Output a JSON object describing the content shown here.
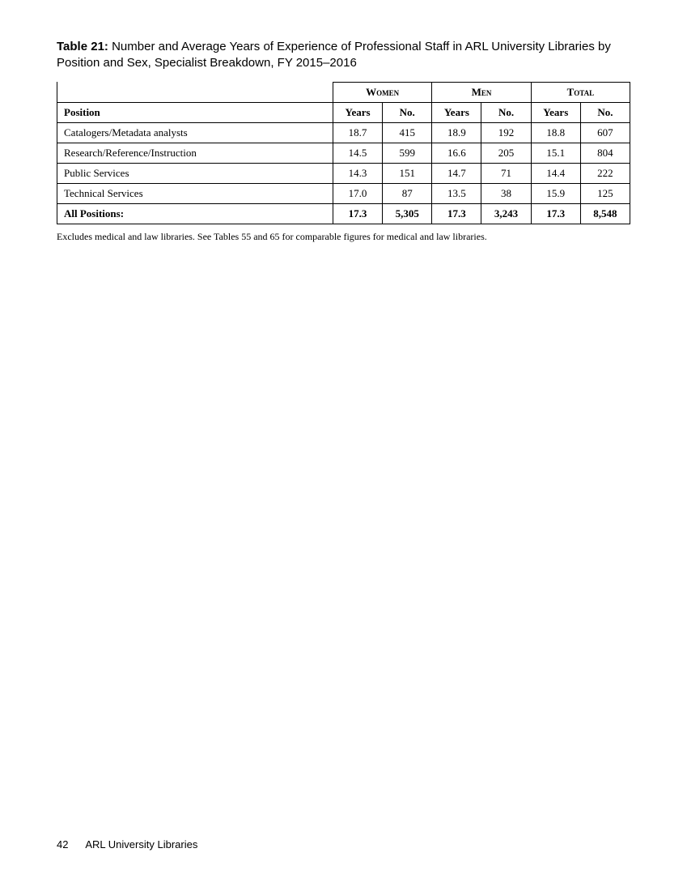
{
  "caption": {
    "label": "Table 21:",
    "text": "Number and Average Years of Experience of Professional Staff in ARL University Libraries by Position and Sex, Specialist Breakdown, FY 2015–2016"
  },
  "table": {
    "group_headers": [
      "Women",
      "Men",
      "Total"
    ],
    "position_header": "Position",
    "sub_headers": [
      "Years",
      "No."
    ],
    "rows": [
      {
        "position": "Catalogers/Metadata analysts",
        "women_years": "18.7",
        "women_no": "415",
        "men_years": "18.9",
        "men_no": "192",
        "total_years": "18.8",
        "total_no": "607"
      },
      {
        "position": "Research/Reference/Instruction",
        "women_years": "14.5",
        "women_no": "599",
        "men_years": "16.6",
        "men_no": "205",
        "total_years": "15.1",
        "total_no": "804"
      },
      {
        "position": "Public Services",
        "women_years": "14.3",
        "women_no": "151",
        "men_years": "14.7",
        "men_no": "71",
        "total_years": "14.4",
        "total_no": "222"
      },
      {
        "position": "Technical Services",
        "women_years": "17.0",
        "women_no": "87",
        "men_years": "13.5",
        "men_no": "38",
        "total_years": "15.9",
        "total_no": "125"
      }
    ],
    "total_row": {
      "position": "All Positions:",
      "women_years": "17.3",
      "women_no": "5,305",
      "men_years": "17.3",
      "men_no": "3,243",
      "total_years": "17.3",
      "total_no": "8,548"
    }
  },
  "footnote": "Excludes medical and law libraries. See Tables 55 and 65 for comparable figures for medical and law libraries.",
  "footer": {
    "page_number": "42",
    "text": "ARL University Libraries"
  }
}
